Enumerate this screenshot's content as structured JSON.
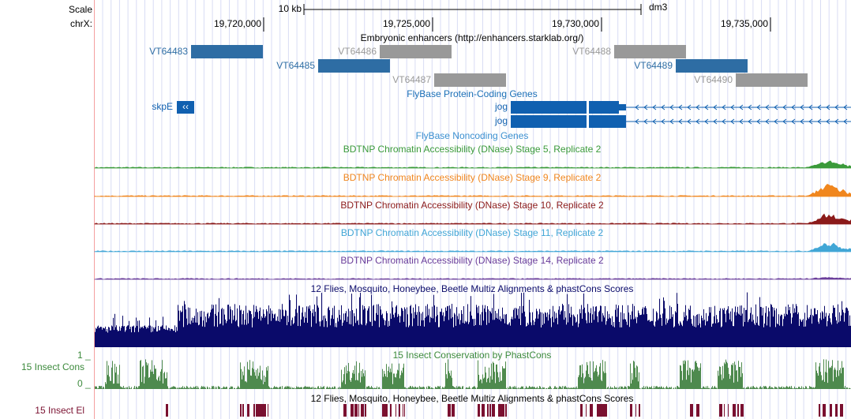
{
  "header": {
    "scale": "Scale",
    "chrom": "chrX:",
    "scale_bar": "10 kb",
    "assembly": "dm3",
    "coords": [
      "19,720,000",
      "19,725,000",
      "19,730,000",
      "19,735,000"
    ]
  },
  "enhancers": {
    "title": "Embryonic enhancers (http://enhancers.starklab.org/)",
    "items": [
      "VT64483",
      "VT64486",
      "VT64485",
      "VT64488",
      "VT64489",
      "VT64487",
      "VT64490"
    ]
  },
  "genes": {
    "title": "FlyBase Protein-Coding Genes",
    "items": [
      "skpE",
      "jog",
      "jog"
    ],
    "noncoding_title": "FlyBase Noncoding Genes"
  },
  "dnase": [
    "BDTNP Chromatin Accessibility (DNase) Stage 5, Replicate 2",
    "BDTNP Chromatin Accessibility (DNase) Stage 9, Replicate 2",
    "BDTNP Chromatin Accessibility (DNase) Stage 10, Replicate 2",
    "BDTNP Chromatin Accessibility (DNase) Stage 11, Replicate 2",
    "BDTNP Chromatin Accessibility (DNase) Stage 14, Replicate 2"
  ],
  "multiz": {
    "title": "12 Flies, Mosquito, Honeybee, Beetle Multiz Alignments & phastCons Scores"
  },
  "phastcons": {
    "title": "15 Insect Conservation by PhastCons",
    "side_label": "15 Insect Cons",
    "max": "1 _",
    "min": "0 _"
  },
  "elements": {
    "title": "12 Flies, Mosquito, Honeybee, Beetle Multiz Alignments & phastCons Scores",
    "side_label": "15 Insect El"
  }
}
